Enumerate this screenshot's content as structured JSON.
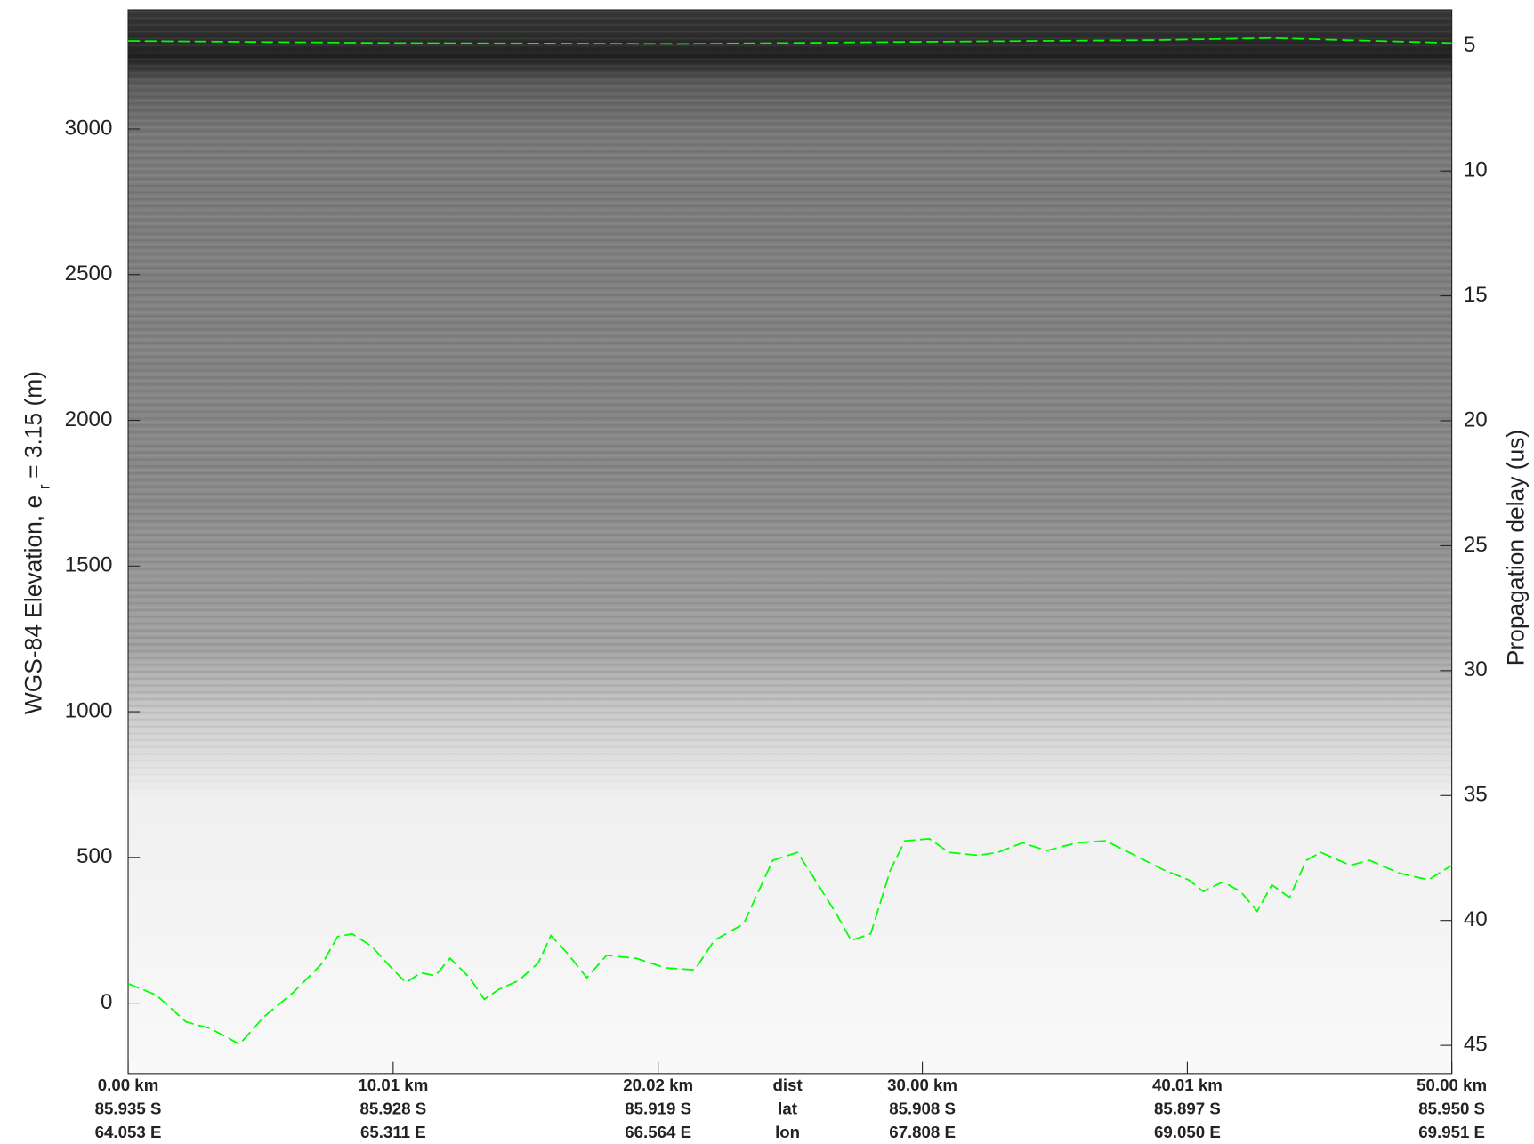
{
  "chart_data": {
    "type": "line",
    "ylabel": "WGS-84 Elevation, e",
    "ylabel_sub": "r",
    "ylabel_end": "= 3.15 (m)",
    "y2label": "Propagation delay (us)",
    "xlim": [
      0,
      50.0
    ],
    "xticks": [
      {
        "value": 0,
        "label": "0.00 km"
      },
      {
        "value": 10.01,
        "label": "10.01 km"
      },
      {
        "value": 20.02,
        "label": "20.02 km"
      },
      {
        "value": 30.0,
        "label": "30.00 km"
      },
      {
        "value": 40.01,
        "label": "40.01 km"
      },
      {
        "value": 50.0,
        "label": "50.00 km"
      }
    ],
    "lat_labels": [
      "85.935 S",
      "85.928 S",
      "85.919 S",
      "85.908 S",
      "85.897 S",
      "85.950 S"
    ],
    "lon_labels": [
      "64.053 E",
      "65.311 E",
      "66.564 E",
      "67.808 E",
      "69.050 E",
      "69.951 E"
    ],
    "row_labels": [
      "dist",
      "lat",
      "lon"
    ],
    "ylim": [
      -242,
      3409
    ],
    "yticks": [
      0,
      500,
      1000,
      1500,
      2000,
      2500,
      3000
    ],
    "y2lim": [
      46.13,
      3.55
    ],
    "y2ticks": [
      5,
      10,
      15,
      20,
      25,
      30,
      35,
      40,
      45
    ],
    "series": [
      {
        "color": "#00ff00",
        "x": [
          0,
          9.94,
          20.99,
          29.86,
          38.73,
          43.17,
          50.0
        ],
        "values": [
          3302,
          3295,
          3292,
          3299,
          3305,
          3312,
          3295
        ]
      },
      {
        "color": "#00ff00",
        "x": [
          0,
          1.07,
          2.18,
          3.1,
          4.21,
          5.13,
          6.24,
          7.35,
          7.91,
          8.46,
          9.2,
          9.94,
          10.49,
          11.05,
          11.6,
          12.16,
          12.9,
          13.45,
          14.0,
          14.75,
          15.49,
          15.97,
          16.59,
          17.33,
          18.07,
          19.18,
          20.29,
          21.4,
          22.14,
          23.25,
          24.35,
          25.28,
          25.83,
          26.76,
          27.31,
          28.05,
          28.79,
          29.34,
          30.27,
          31.0,
          32.11,
          32.85,
          33.78,
          34.7,
          35.81,
          36.92,
          38.03,
          39.14,
          40.06,
          40.61,
          41.35,
          42.02,
          42.65,
          43.2,
          43.87,
          44.5,
          45.05,
          46.16,
          46.9,
          48.01,
          49.12,
          50.0
        ],
        "values": [
          67,
          27,
          -64,
          -87,
          -141,
          -47,
          37,
          138,
          228,
          238,
          195,
          121,
          70,
          104,
          94,
          154,
          87,
          13,
          47,
          77,
          138,
          232,
          171,
          87,
          164,
          154,
          121,
          114,
          215,
          272,
          490,
          517,
          440,
          305,
          215,
          238,
          456,
          557,
          564,
          517,
          507,
          517,
          550,
          523,
          550,
          557,
          507,
          456,
          423,
          383,
          416,
          383,
          315,
          406,
          362,
          490,
          517,
          473,
          490,
          446,
          423,
          473
        ]
      }
    ]
  }
}
